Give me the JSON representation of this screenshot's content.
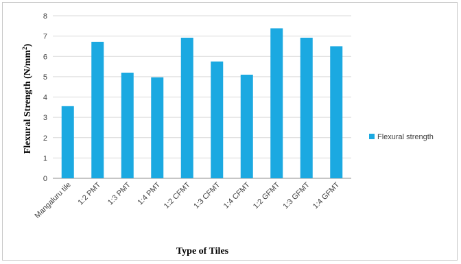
{
  "chart_data": {
    "type": "bar",
    "categories": [
      "Mangaluru tile",
      "1:2 PMT",
      "1:3 PMT",
      "1:4 PMT",
      "1:2 CFMT",
      "1:3 CFMT",
      "1:4 CFMT",
      "1:2 GFMT",
      "1:3 GFMT",
      "1:4 GFMT"
    ],
    "series": [
      {
        "name": "Flexural strength",
        "values": [
          3.55,
          6.72,
          5.2,
          4.97,
          6.92,
          5.75,
          5.1,
          7.38,
          6.92,
          6.5
        ]
      }
    ],
    "ylim": [
      0,
      8
    ],
    "yticks": [
      "0",
      "1",
      "2",
      "3",
      "4",
      "5",
      "6",
      "7",
      "8"
    ],
    "ylabel_main": "Flexural Strength (N/mm",
    "ylabel_sup": "2",
    "ylabel_end": ")",
    "xlabel": "Type of Tiles",
    "grid": true,
    "legend_position": "right",
    "bar_color": "#1ba9e1"
  }
}
